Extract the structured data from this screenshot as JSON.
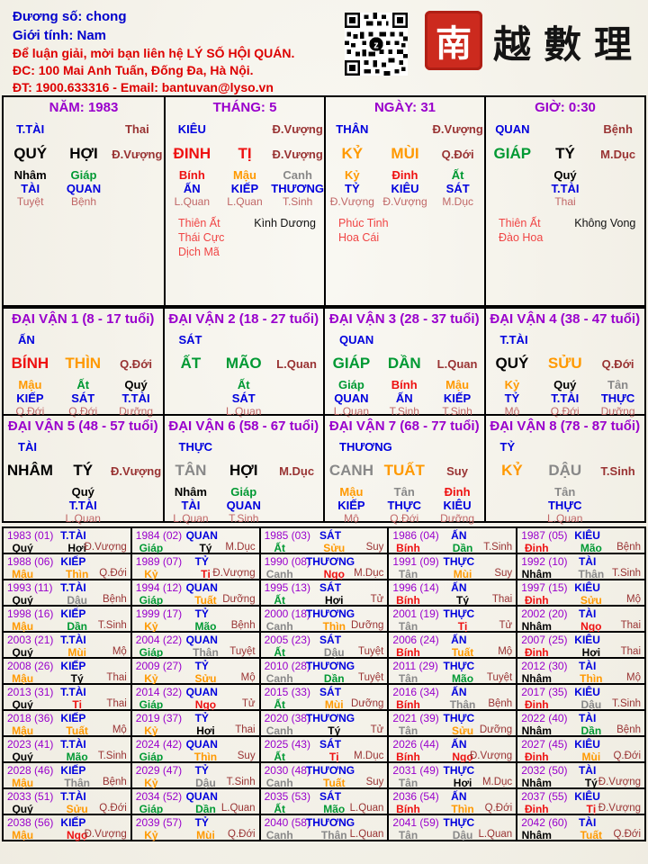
{
  "header": {
    "line1": "Đương số: chong",
    "line2": "Giới tính:   Nam",
    "line3": "Để luận giải, mời bạn liên hệ LÝ SỐ HỘI QUÁN.",
    "line4": "ĐC: 100 Mai Anh Tuấn, Đống Đa, Hà Nội.",
    "line5": "ĐT: 1900.633316 - Email: bantuvan@lyso.vn",
    "seal_char": "南",
    "calligraphy": "越數理"
  },
  "colors": {
    "water_black": "#000000",
    "wood_green": "#009933",
    "fire_red": "#ee1111",
    "earth_orange": "#ff9900",
    "metal_gray": "#888888",
    "god_blue": "#0000dd",
    "title_purple": "#9900cc",
    "state_maroon": "#993333",
    "state_rose": "#c06666",
    "star_red": "#f04444",
    "header_blue": "#0000cc",
    "header_red": "#dd0000",
    "seal_red": "#cc2a1e",
    "background": "#f4f1e6"
  },
  "pillars": [
    {
      "title": "NĂM: 1983",
      "god": "T.TÀI",
      "god_state": "Thai",
      "stem": "QUÝ",
      "sc": "wa",
      "branch": "HỢI",
      "bc": "wa",
      "state": "Đ.Vượng",
      "hidden": [
        {
          "s": "Nhâm",
          "sc": "wa",
          "g": "TÀI",
          "st": "Tuyệt"
        },
        {
          "s": "Giáp",
          "sc": "wo",
          "g": "QUAN",
          "st": "Bệnh"
        },
        null
      ],
      "stars_red": [],
      "stars_black": []
    },
    {
      "title": "THÁNG: 5",
      "god": "KIÊU",
      "god_state": "Đ.Vượng",
      "stem": "ĐINH",
      "sc": "fi",
      "branch": "TỊ",
      "bc": "fi",
      "state": "Đ.Vượng",
      "hidden": [
        {
          "s": "Bính",
          "sc": "fi",
          "g": "ẤN",
          "st": "L.Quan"
        },
        {
          "s": "Mậu",
          "sc": "ea",
          "g": "KIẾP",
          "st": "L.Quan"
        },
        {
          "s": "Canh",
          "sc": "me",
          "g": "THƯƠNG",
          "st": "T.Sinh"
        }
      ],
      "stars_red": [
        "Thiên Ất",
        "Thái Cực",
        "Dịch Mã"
      ],
      "stars_black": [
        "Kình Dương"
      ]
    },
    {
      "title": "NGÀY: 31",
      "god": "THÂN",
      "god_state": "Đ.Vượng",
      "stem": "KỶ",
      "sc": "ea",
      "branch": "MÙI",
      "bc": "ea",
      "state": "Q.Đới",
      "hidden": [
        {
          "s": "Kỷ",
          "sc": "ea",
          "g": "TỶ",
          "st": "Đ.Vượng"
        },
        {
          "s": "Đinh",
          "sc": "fi",
          "g": "KIÊU",
          "st": "Đ.Vượng"
        },
        {
          "s": "Ất",
          "sc": "wo",
          "g": "SÁT",
          "st": "M.Dục"
        }
      ],
      "stars_red": [
        "Phúc Tinh",
        "Hoa Cái"
      ],
      "stars_black": []
    },
    {
      "title": "GIỜ: 0:30",
      "god": "QUAN",
      "god_state": "Bệnh",
      "stem": "GIÁP",
      "sc": "wo",
      "branch": "TÝ",
      "bc": "wa",
      "state": "M.Dục",
      "hidden": [
        null,
        {
          "s": "Quý",
          "sc": "wa",
          "g": "T.TÀI",
          "st": "Thai"
        },
        null
      ],
      "stars_red": [
        "Thiên Ất",
        "Đào Hoa"
      ],
      "stars_black": [
        "Không Vong"
      ]
    }
  ],
  "dai_van": [
    {
      "title": "ĐẠI VẬN 1 (8 - 17 tuổi)",
      "god": "ẤN",
      "stem": "BÍNH",
      "sc": "fi",
      "branch": "THÌN",
      "bc": "ea",
      "state": "Q.Đới",
      "hidden": [
        {
          "s": "Mậu",
          "sc": "ea",
          "g": "KIẾP",
          "st": "Q.Đới"
        },
        {
          "s": "Ất",
          "sc": "wo",
          "g": "SÁT",
          "st": "Q.Đới"
        },
        {
          "s": "Quý",
          "sc": "wa",
          "g": "T.TÀI",
          "st": "Dưỡng"
        }
      ]
    },
    {
      "title": "ĐẠI VẬN 2 (18 - 27 tuổi)",
      "god": "SÁT",
      "stem": "ẤT",
      "sc": "wo",
      "branch": "MÃO",
      "bc": "wo",
      "state": "L.Quan",
      "hidden": [
        null,
        {
          "s": "Ất",
          "sc": "wo",
          "g": "SÁT",
          "st": "L.Quan"
        },
        null
      ]
    },
    {
      "title": "ĐẠI VẬN 3 (28 - 37 tuổi)",
      "god": "QUAN",
      "stem": "GIÁP",
      "sc": "wo",
      "branch": "DẦN",
      "bc": "wo",
      "state": "L.Quan",
      "hidden": [
        {
          "s": "Giáp",
          "sc": "wo",
          "g": "QUAN",
          "st": "L.Quan"
        },
        {
          "s": "Bính",
          "sc": "fi",
          "g": "ẤN",
          "st": "T.Sinh"
        },
        {
          "s": "Mậu",
          "sc": "ea",
          "g": "KIẾP",
          "st": "T.Sinh"
        }
      ]
    },
    {
      "title": "ĐẠI VẬN 4 (38 - 47 tuổi)",
      "god": "T.TÀI",
      "stem": "QUÝ",
      "sc": "wa",
      "branch": "SỬU",
      "bc": "ea",
      "state": "Q.Đới",
      "hidden": [
        {
          "s": "Kỷ",
          "sc": "ea",
          "g": "TỶ",
          "st": "Mộ"
        },
        {
          "s": "Quý",
          "sc": "wa",
          "g": "T.TÀI",
          "st": "Q.Đới"
        },
        {
          "s": "Tân",
          "sc": "me",
          "g": "THỰC",
          "st": "Dưỡng"
        }
      ]
    },
    {
      "title": "ĐẠI VẬN 5 (48 - 57 tuổi)",
      "god": "TÀI",
      "stem": "NHÂM",
      "sc": "wa",
      "branch": "TÝ",
      "bc": "wa",
      "state": "Đ.Vượng",
      "hidden": [
        null,
        {
          "s": "Quý",
          "sc": "wa",
          "g": "T.TÀI",
          "st": "L.Quan"
        },
        null
      ]
    },
    {
      "title": "ĐẠI VẬN 6 (58 - 67 tuổi)",
      "god": "THỰC",
      "stem": "TÂN",
      "sc": "me",
      "branch": "HỢI",
      "bc": "wa",
      "state": "M.Dục",
      "hidden": [
        {
          "s": "Nhâm",
          "sc": "wa",
          "g": "TÀI",
          "st": "L.Quan"
        },
        {
          "s": "Giáp",
          "sc": "wo",
          "g": "QUAN",
          "st": "T.Sinh"
        },
        null
      ]
    },
    {
      "title": "ĐẠI VẬN 7 (68 - 77 tuổi)",
      "god": "THƯƠNG",
      "stem": "CANH",
      "sc": "me",
      "branch": "TUẤT",
      "bc": "ea",
      "state": "Suy",
      "hidden": [
        {
          "s": "Mậu",
          "sc": "ea",
          "g": "KIẾP",
          "st": "Mộ"
        },
        {
          "s": "Tân",
          "sc": "me",
          "g": "THỰC",
          "st": "Q.Đới"
        },
        {
          "s": "Đinh",
          "sc": "fi",
          "g": "KIÊU",
          "st": "Dưỡng"
        }
      ]
    },
    {
      "title": "ĐẠI VẬN 8 (78 - 87 tuổi)",
      "god": "TỶ",
      "stem": "KỶ",
      "sc": "ea",
      "branch": "DẬU",
      "bc": "me",
      "state": "T.Sinh",
      "hidden": [
        null,
        {
          "s": "Tân",
          "sc": "me",
          "g": "THỰC",
          "st": "L.Quan"
        },
        null
      ]
    }
  ],
  "years": [
    [
      "1983 (01)",
      "T.TÀI",
      "Quý",
      "wa",
      "Hợi",
      "wa",
      "Đ.Vượng"
    ],
    [
      "1984 (02)",
      "QUAN",
      "Giáp",
      "wo",
      "Tý",
      "wa",
      "M.Dục"
    ],
    [
      "1985 (03)",
      "SÁT",
      "Ất",
      "wo",
      "Sửu",
      "ea",
      "Suy"
    ],
    [
      "1986 (04)",
      "ẤN",
      "Bính",
      "fi",
      "Dần",
      "wo",
      "T.Sinh"
    ],
    [
      "1987 (05)",
      "KIÊU",
      "Đinh",
      "fi",
      "Mão",
      "wo",
      "Bệnh"
    ],
    [
      "1988 (06)",
      "KIẾP",
      "Mậu",
      "ea",
      "Thìn",
      "ea",
      "Q.Đới"
    ],
    [
      "1989 (07)",
      "TỶ",
      "Kỷ",
      "ea",
      "Tị",
      "fi",
      "Đ.Vượng"
    ],
    [
      "1990 (08)",
      "THƯƠNG",
      "Canh",
      "me",
      "Ngọ",
      "fi",
      "M.Dục"
    ],
    [
      "1991 (09)",
      "THỰC",
      "Tân",
      "me",
      "Mùi",
      "ea",
      "Suy"
    ],
    [
      "1992 (10)",
      "TÀI",
      "Nhâm",
      "wa",
      "Thân",
      "me",
      "T.Sinh"
    ],
    [
      "1993 (11)",
      "T.TÀI",
      "Quý",
      "wa",
      "Dậu",
      "me",
      "Bệnh"
    ],
    [
      "1994 (12)",
      "QUAN",
      "Giáp",
      "wo",
      "Tuất",
      "ea",
      "Dưỡng"
    ],
    [
      "1995 (13)",
      "SÁT",
      "Ất",
      "wo",
      "Hợi",
      "wa",
      "Tử"
    ],
    [
      "1996 (14)",
      "ẤN",
      "Bính",
      "fi",
      "Tý",
      "wa",
      "Thai"
    ],
    [
      "1997 (15)",
      "KIÊU",
      "Đinh",
      "fi",
      "Sửu",
      "ea",
      "Mộ"
    ],
    [
      "1998 (16)",
      "KIẾP",
      "Mậu",
      "ea",
      "Dần",
      "wo",
      "T.Sinh"
    ],
    [
      "1999 (17)",
      "TỶ",
      "Kỷ",
      "ea",
      "Mão",
      "wo",
      "Bệnh"
    ],
    [
      "2000 (18)",
      "THƯƠNG",
      "Canh",
      "me",
      "Thìn",
      "ea",
      "Dưỡng"
    ],
    [
      "2001 (19)",
      "THỰC",
      "Tân",
      "me",
      "Tị",
      "fi",
      "Tử"
    ],
    [
      "2002 (20)",
      "TÀI",
      "Nhâm",
      "wa",
      "Ngọ",
      "fi",
      "Thai"
    ],
    [
      "2003 (21)",
      "T.TÀI",
      "Quý",
      "wa",
      "Mùi",
      "ea",
      "Mộ"
    ],
    [
      "2004 (22)",
      "QUAN",
      "Giáp",
      "wo",
      "Thân",
      "me",
      "Tuyệt"
    ],
    [
      "2005 (23)",
      "SÁT",
      "Ất",
      "wo",
      "Dậu",
      "me",
      "Tuyệt"
    ],
    [
      "2006 (24)",
      "ẤN",
      "Bính",
      "fi",
      "Tuất",
      "ea",
      "Mộ"
    ],
    [
      "2007 (25)",
      "KIÊU",
      "Đinh",
      "fi",
      "Hợi",
      "wa",
      "Thai"
    ],
    [
      "2008 (26)",
      "KIẾP",
      "Mậu",
      "ea",
      "Tý",
      "wa",
      "Thai"
    ],
    [
      "2009 (27)",
      "TỶ",
      "Kỷ",
      "ea",
      "Sửu",
      "ea",
      "Mộ"
    ],
    [
      "2010 (28)",
      "THƯƠNG",
      "Canh",
      "me",
      "Dần",
      "wo",
      "Tuyệt"
    ],
    [
      "2011 (29)",
      "THỰC",
      "Tân",
      "me",
      "Mão",
      "wo",
      "Tuyệt"
    ],
    [
      "2012 (30)",
      "TÀI",
      "Nhâm",
      "wa",
      "Thìn",
      "ea",
      "Mộ"
    ],
    [
      "2013 (31)",
      "T.TÀI",
      "Quý",
      "wa",
      "Tị",
      "fi",
      "Thai"
    ],
    [
      "2014 (32)",
      "QUAN",
      "Giáp",
      "wo",
      "Ngọ",
      "fi",
      "Tử"
    ],
    [
      "2015 (33)",
      "SÁT",
      "Ất",
      "wo",
      "Mùi",
      "ea",
      "Dưỡng"
    ],
    [
      "2016 (34)",
      "ẤN",
      "Bính",
      "fi",
      "Thân",
      "me",
      "Bệnh"
    ],
    [
      "2017 (35)",
      "KIÊU",
      "Đinh",
      "fi",
      "Dậu",
      "me",
      "T.Sinh"
    ],
    [
      "2018 (36)",
      "KIẾP",
      "Mậu",
      "ea",
      "Tuất",
      "ea",
      "Mộ"
    ],
    [
      "2019 (37)",
      "TỶ",
      "Kỷ",
      "ea",
      "Hợi",
      "wa",
      "Thai"
    ],
    [
      "2020 (38)",
      "THƯƠNG",
      "Canh",
      "me",
      "Tý",
      "wa",
      "Tử"
    ],
    [
      "2021 (39)",
      "THỰC",
      "Tân",
      "me",
      "Sửu",
      "ea",
      "Dưỡng"
    ],
    [
      "2022 (40)",
      "TÀI",
      "Nhâm",
      "wa",
      "Dần",
      "wo",
      "Bệnh"
    ],
    [
      "2023 (41)",
      "T.TÀI",
      "Quý",
      "wa",
      "Mão",
      "wo",
      "T.Sinh"
    ],
    [
      "2024 (42)",
      "QUAN",
      "Giáp",
      "wo",
      "Thìn",
      "ea",
      "Suy"
    ],
    [
      "2025 (43)",
      "SÁT",
      "Ất",
      "wo",
      "Tị",
      "fi",
      "M.Dục"
    ],
    [
      "2026 (44)",
      "ẤN",
      "Bính",
      "fi",
      "Ngọ",
      "fi",
      "Đ.Vượng"
    ],
    [
      "2027 (45)",
      "KIÊU",
      "Đinh",
      "fi",
      "Mùi",
      "ea",
      "Q.Đới"
    ],
    [
      "2028 (46)",
      "KIẾP",
      "Mậu",
      "ea",
      "Thân",
      "me",
      "Bệnh"
    ],
    [
      "2029 (47)",
      "TỶ",
      "Kỷ",
      "ea",
      "Dậu",
      "me",
      "T.Sinh"
    ],
    [
      "2030 (48)",
      "THƯƠNG",
      "Canh",
      "me",
      "Tuất",
      "ea",
      "Suy"
    ],
    [
      "2031 (49)",
      "THỰC",
      "Tân",
      "me",
      "Hợi",
      "wa",
      "M.Dục"
    ],
    [
      "2032 (50)",
      "TÀI",
      "Nhâm",
      "wa",
      "Tý",
      "wa",
      "Đ.Vượng"
    ],
    [
      "2033 (51)",
      "T.TÀI",
      "Quý",
      "wa",
      "Sửu",
      "ea",
      "Q.Đới"
    ],
    [
      "2034 (52)",
      "QUAN",
      "Giáp",
      "wo",
      "Dần",
      "wo",
      "L.Quan"
    ],
    [
      "2035 (53)",
      "SÁT",
      "Ất",
      "wo",
      "Mão",
      "wo",
      "L.Quan"
    ],
    [
      "2036 (54)",
      "ẤN",
      "Bính",
      "fi",
      "Thìn",
      "ea",
      "Q.Đới"
    ],
    [
      "2037 (55)",
      "KIÊU",
      "Đinh",
      "fi",
      "Tị",
      "fi",
      "Đ.Vượng"
    ],
    [
      "2038 (56)",
      "KIẾP",
      "Mậu",
      "ea",
      "Ngọ",
      "fi",
      "Đ.Vượng"
    ],
    [
      "2039 (57)",
      "TỶ",
      "Kỷ",
      "ea",
      "Mùi",
      "ea",
      "Q.Đới"
    ],
    [
      "2040 (58)",
      "THƯƠNG",
      "Canh",
      "me",
      "Thân",
      "me",
      "L.Quan"
    ],
    [
      "2041 (59)",
      "THỰC",
      "Tân",
      "me",
      "Dậu",
      "me",
      "L.Quan"
    ],
    [
      "2042 (60)",
      "TÀI",
      "Nhâm",
      "wa",
      "Tuất",
      "ea",
      "Q.Đới"
    ]
  ]
}
